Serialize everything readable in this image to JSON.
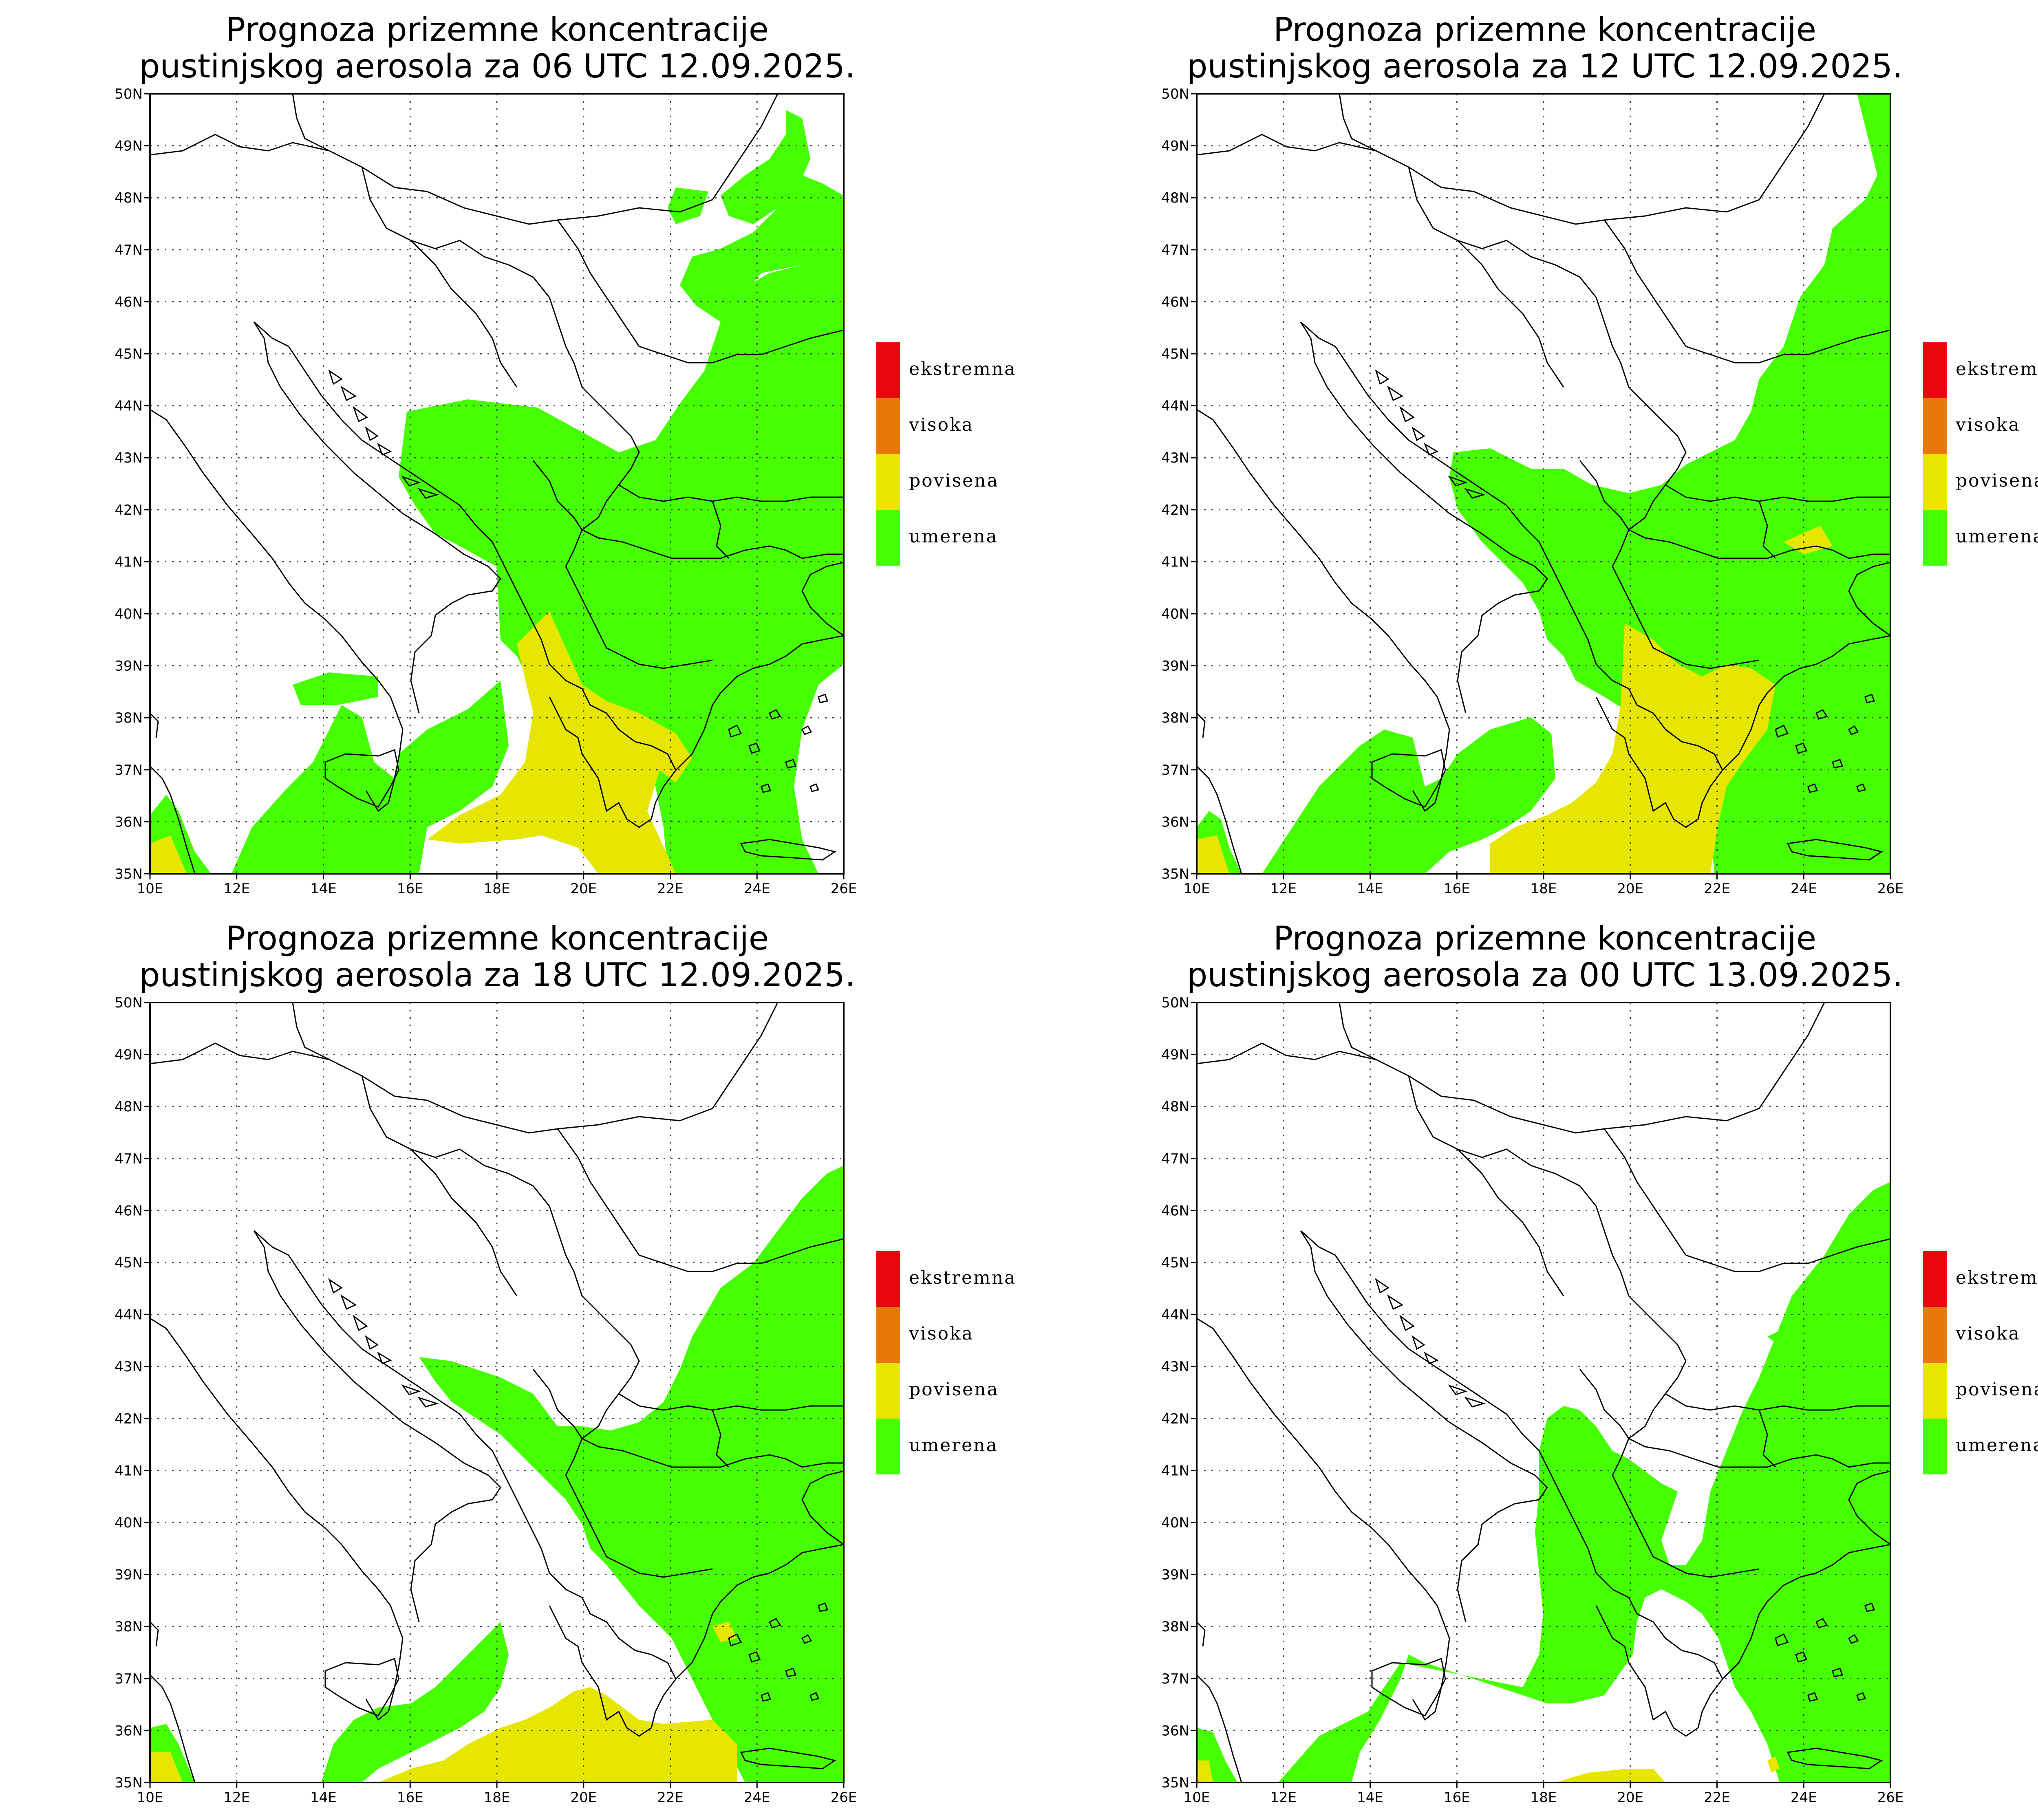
{
  "panels": [
    {
      "title_line1": "Prognoza prizemne koncentracije",
      "title_line2": "pustinjskog aerosola za 06 UTC 12.09.2025."
    },
    {
      "title_line1": "Prognoza prizemne koncentracije",
      "title_line2": "pustinjskog aerosola za 12 UTC 12.09.2025."
    },
    {
      "title_line1": "Prognoza prizemne koncentracije",
      "title_line2": "pustinjskog aerosola za 18 UTC 12.09.2025."
    },
    {
      "title_line1": "Prognoza prizemne koncentracije",
      "title_line2": "pustinjskog aerosola za 00 UTC 13.09.2025."
    }
  ],
  "lat_labels": [
    "35N",
    "36N",
    "37N",
    "38N",
    "39N",
    "40N",
    "41N",
    "42N",
    "43N",
    "44N",
    "45N",
    "46N",
    "47N",
    "48N",
    "49N",
    "50N"
  ],
  "lon_labels": [
    "10E",
    "12E",
    "14E",
    "16E",
    "18E",
    "20E",
    "22E",
    "24E",
    "26E"
  ],
  "legend": [
    {
      "label": "ekstremna",
      "color": "#e8080c"
    },
    {
      "label": "visoka",
      "color": "#e8780a"
    },
    {
      "label": "povisena",
      "color": "#e6e600"
    },
    {
      "label": "umerena",
      "color": "#46ff00"
    }
  ],
  "colors": {
    "umerena": "#46ff00",
    "povisena": "#e6e600",
    "frame": "#000000"
  }
}
